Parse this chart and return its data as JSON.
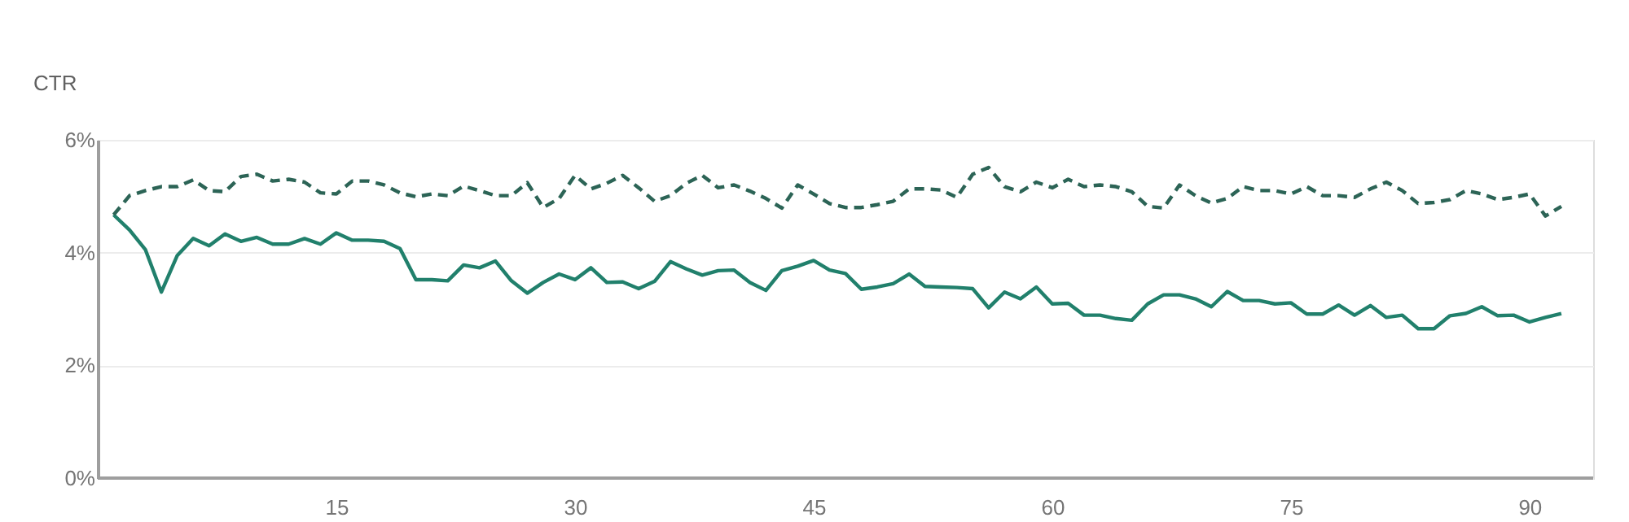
{
  "chart_data": {
    "type": "line",
    "ylabel": "CTR",
    "xlim": [
      0,
      94
    ],
    "xticks": [
      15,
      30,
      45,
      60,
      75,
      90
    ],
    "ylim": [
      0,
      6
    ],
    "yticks": [
      {
        "value": 0,
        "label": "0%"
      },
      {
        "value": 2,
        "label": "2%"
      },
      {
        "value": 4,
        "label": "4%"
      },
      {
        "value": 6,
        "label": "6%"
      }
    ],
    "grid": "y",
    "marker": "none",
    "x": [
      1,
      2,
      3,
      4,
      5,
      6,
      7,
      8,
      9,
      10,
      11,
      12,
      13,
      14,
      15,
      16,
      17,
      18,
      19,
      20,
      21,
      22,
      23,
      24,
      25,
      26,
      27,
      28,
      29,
      30,
      31,
      32,
      33,
      34,
      35,
      36,
      37,
      38,
      39,
      40,
      41,
      42,
      43,
      44,
      45,
      46,
      47,
      48,
      49,
      50,
      51,
      52,
      53,
      54,
      55,
      56,
      57,
      58,
      59,
      60,
      61,
      62,
      63,
      64,
      65,
      66,
      67,
      68,
      69,
      70,
      71,
      72,
      73,
      74,
      75,
      76,
      77,
      78,
      79,
      80,
      81,
      82,
      83,
      84,
      85,
      86,
      87,
      88,
      89,
      90,
      91,
      92
    ],
    "series": [
      {
        "color": "#21806c",
        "line_style": "solid",
        "values": [
          4.67,
          4.4,
          4.05,
          3.3,
          3.95,
          4.25,
          4.12,
          4.33,
          4.2,
          4.27,
          4.15,
          4.15,
          4.25,
          4.15,
          4.35,
          4.22,
          4.22,
          4.2,
          4.07,
          3.52,
          3.52,
          3.5,
          3.78,
          3.73,
          3.85,
          3.5,
          3.28,
          3.47,
          3.62,
          3.52,
          3.73,
          3.47,
          3.48,
          3.36,
          3.49,
          3.84,
          3.71,
          3.6,
          3.68,
          3.69,
          3.47,
          3.33,
          3.68,
          3.76,
          3.86,
          3.69,
          3.63,
          3.35,
          3.39,
          3.45,
          3.62,
          3.4,
          3.39,
          3.38,
          3.36,
          3.02,
          3.3,
          3.18,
          3.39,
          3.09,
          3.1,
          2.89,
          2.89,
          2.83,
          2.8,
          3.09,
          3.25,
          3.25,
          3.18,
          3.04,
          3.31,
          3.15,
          3.15,
          3.09,
          3.11,
          2.91,
          2.91,
          3.07,
          2.89,
          3.06,
          2.85,
          2.89,
          2.65,
          2.65,
          2.88,
          2.92,
          3.04,
          2.88,
          2.89,
          2.77,
          2.85,
          2.92
        ]
      },
      {
        "color": "#2c6456",
        "line_style": "dashed",
        "values": [
          4.67,
          5.01,
          5.1,
          5.17,
          5.17,
          5.29,
          5.1,
          5.08,
          5.35,
          5.39,
          5.27,
          5.3,
          5.25,
          5.06,
          5.04,
          5.27,
          5.27,
          5.2,
          5.06,
          4.99,
          5.04,
          5.01,
          5.18,
          5.1,
          5.01,
          5.01,
          5.24,
          4.8,
          4.96,
          5.37,
          5.13,
          5.23,
          5.37,
          5.15,
          4.91,
          5.01,
          5.23,
          5.37,
          5.15,
          5.2,
          5.09,
          4.96,
          4.79,
          5.2,
          5.04,
          4.87,
          4.8,
          4.8,
          4.85,
          4.91,
          5.13,
          5.13,
          5.11,
          4.98,
          5.39,
          5.51,
          5.17,
          5.08,
          5.25,
          5.15,
          5.3,
          5.17,
          5.2,
          5.17,
          5.08,
          4.82,
          4.79,
          5.2,
          5.01,
          4.88,
          4.96,
          5.17,
          5.1,
          5.1,
          5.04,
          5.17,
          5.01,
          5.01,
          4.98,
          5.13,
          5.25,
          5.1,
          4.87,
          4.89,
          4.94,
          5.1,
          5.04,
          4.94,
          4.98,
          5.04,
          4.65,
          4.82
        ]
      }
    ]
  }
}
